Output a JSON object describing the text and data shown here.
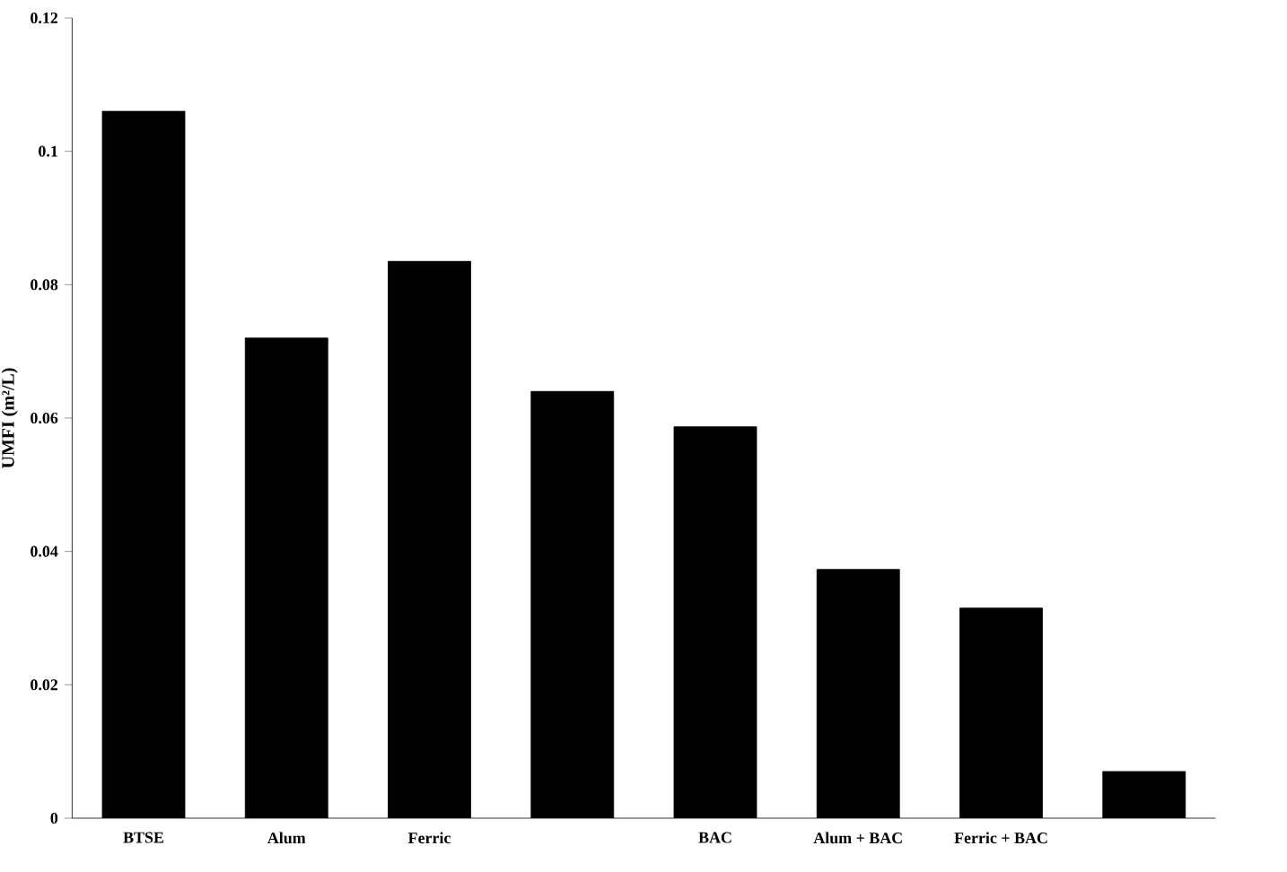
{
  "chart_data": {
    "type": "bar",
    "ylabel": "UMFI (m²/L)",
    "categories": [
      "BTSE",
      "Alum",
      "Ferric",
      null,
      "BAC",
      "Alum + BAC",
      "Ferric + BAC",
      null
    ],
    "values": [
      0.106,
      0.072,
      0.0835,
      0.064,
      0.0587,
      0.0373,
      0.0315,
      0.007
    ],
    "color": "#000000",
    "ylim": [
      0,
      0.12
    ],
    "yticks": [
      {
        "value": 0,
        "label": "0"
      },
      {
        "value": 0.02,
        "label": "0.02"
      },
      {
        "value": 0.04,
        "label": "0.04"
      },
      {
        "value": 0.06,
        "label": "0.06"
      },
      {
        "value": 0.08,
        "label": "0.08"
      },
      {
        "value": 0.1,
        "label": "0.1"
      },
      {
        "value": 0.12,
        "label": "0.12"
      }
    ],
    "grid": false
  }
}
